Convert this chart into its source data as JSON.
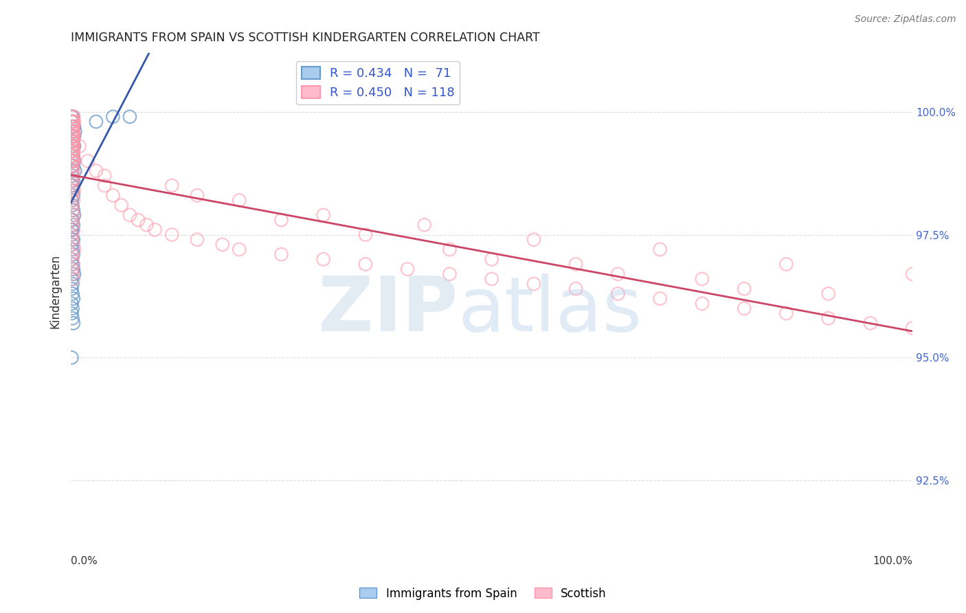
{
  "title": "IMMIGRANTS FROM SPAIN VS SCOTTISH KINDERGARTEN CORRELATION CHART",
  "source": "Source: ZipAtlas.com",
  "ylabel": "Kindergarten",
  "xlim": [
    0.0,
    1.0
  ],
  "ylim": [
    91.5,
    101.2
  ],
  "blue_color": "#6699cc",
  "pink_color": "#ff99aa",
  "blue_line_color": "#3355aa",
  "pink_line_color": "#cc4466",
  "background_color": "#ffffff",
  "grid_color": "#cccccc",
  "blue_x": [
    0.001,
    0.002,
    0.003,
    0.001,
    0.002,
    0.004,
    0.003,
    0.002,
    0.001,
    0.005,
    0.002,
    0.003,
    0.004,
    0.001,
    0.002,
    0.003,
    0.001,
    0.002,
    0.003,
    0.004,
    0.001,
    0.002,
    0.001,
    0.003,
    0.002,
    0.001,
    0.004,
    0.002,
    0.003,
    0.001,
    0.005,
    0.002,
    0.001,
    0.003,
    0.002,
    0.001,
    0.002,
    0.003,
    0.001,
    0.002,
    0.003,
    0.004,
    0.001,
    0.002,
    0.003,
    0.001,
    0.002,
    0.001,
    0.003,
    0.002,
    0.05,
    0.001,
    0.002,
    0.003,
    0.001,
    0.002,
    0.003,
    0.004,
    0.001,
    0.002,
    0.03,
    0.001,
    0.002,
    0.003,
    0.001,
    0.002,
    0.001,
    0.002,
    0.003,
    0.07,
    0.001
  ],
  "blue_y": [
    99.9,
    99.9,
    99.9,
    99.8,
    99.8,
    99.7,
    99.7,
    99.7,
    99.7,
    99.6,
    99.5,
    99.5,
    99.5,
    99.4,
    99.4,
    99.4,
    99.3,
    99.3,
    99.3,
    99.3,
    99.2,
    99.2,
    99.1,
    99.1,
    99.1,
    99.0,
    99.0,
    98.9,
    98.9,
    98.8,
    98.8,
    98.7,
    98.6,
    98.6,
    98.5,
    98.5,
    98.4,
    98.3,
    98.2,
    98.1,
    98.0,
    97.9,
    97.8,
    97.8,
    97.7,
    97.6,
    97.6,
    97.5,
    97.4,
    97.4,
    99.9,
    97.3,
    97.2,
    97.1,
    97.0,
    96.9,
    96.8,
    96.7,
    96.6,
    96.5,
    99.8,
    96.4,
    96.3,
    96.2,
    96.1,
    96.0,
    95.9,
    95.8,
    95.7,
    99.9,
    95.0
  ],
  "pink_x": [
    0.001,
    0.002,
    0.003,
    0.001,
    0.002,
    0.003,
    0.004,
    0.001,
    0.002,
    0.003,
    0.001,
    0.002,
    0.003,
    0.001,
    0.002,
    0.003,
    0.004,
    0.001,
    0.002,
    0.003,
    0.001,
    0.002,
    0.003,
    0.001,
    0.002,
    0.003,
    0.001,
    0.002,
    0.003,
    0.001,
    0.002,
    0.003,
    0.001,
    0.002,
    0.003,
    0.001,
    0.002,
    0.001,
    0.002,
    0.003,
    0.004,
    0.001,
    0.002,
    0.003,
    0.001,
    0.002,
    0.003,
    0.001,
    0.002,
    0.003,
    0.001,
    0.002,
    0.003,
    0.004,
    0.001,
    0.002,
    0.003,
    0.001,
    0.002,
    0.003,
    0.01,
    0.02,
    0.03,
    0.04,
    0.05,
    0.06,
    0.07,
    0.08,
    0.09,
    0.1,
    0.12,
    0.15,
    0.18,
    0.2,
    0.25,
    0.3,
    0.35,
    0.4,
    0.45,
    0.5,
    0.55,
    0.6,
    0.65,
    0.7,
    0.75,
    0.8,
    0.85,
    0.9,
    0.95,
    1.0,
    0.001,
    0.002,
    0.003,
    0.001,
    0.002,
    0.003,
    0.001,
    0.002,
    0.003,
    0.04,
    0.12,
    0.2,
    0.3,
    0.42,
    0.55,
    0.7,
    0.85,
    1.0,
    0.15,
    0.25,
    0.35,
    0.45,
    0.6,
    0.75,
    0.9,
    0.5,
    0.65,
    0.8
  ],
  "pink_y": [
    99.9,
    99.9,
    99.9,
    99.8,
    99.8,
    99.8,
    99.8,
    99.7,
    99.7,
    99.7,
    99.6,
    99.6,
    99.6,
    99.5,
    99.5,
    99.5,
    99.5,
    99.4,
    99.4,
    99.4,
    99.3,
    99.3,
    99.3,
    99.2,
    99.2,
    99.2,
    99.1,
    99.1,
    99.1,
    99.0,
    99.0,
    99.0,
    98.9,
    98.9,
    98.8,
    98.8,
    98.7,
    98.6,
    98.6,
    98.5,
    98.4,
    98.4,
    98.3,
    98.2,
    98.1,
    98.0,
    97.9,
    97.8,
    97.7,
    97.6,
    97.5,
    97.4,
    97.3,
    97.2,
    97.1,
    97.0,
    96.9,
    96.8,
    96.7,
    96.6,
    99.3,
    99.0,
    98.8,
    98.5,
    98.3,
    98.1,
    97.9,
    97.8,
    97.7,
    97.6,
    97.5,
    97.4,
    97.3,
    97.2,
    97.1,
    97.0,
    96.9,
    96.8,
    96.7,
    96.6,
    96.5,
    96.4,
    96.3,
    96.2,
    96.1,
    96.0,
    95.9,
    95.8,
    95.7,
    95.6,
    99.8,
    99.7,
    99.6,
    99.5,
    99.4,
    99.3,
    99.2,
    99.1,
    99.0,
    98.7,
    98.5,
    98.2,
    97.9,
    97.7,
    97.4,
    97.2,
    96.9,
    96.7,
    98.3,
    97.8,
    97.5,
    97.2,
    96.9,
    96.6,
    96.3,
    97.0,
    96.7,
    96.4
  ]
}
